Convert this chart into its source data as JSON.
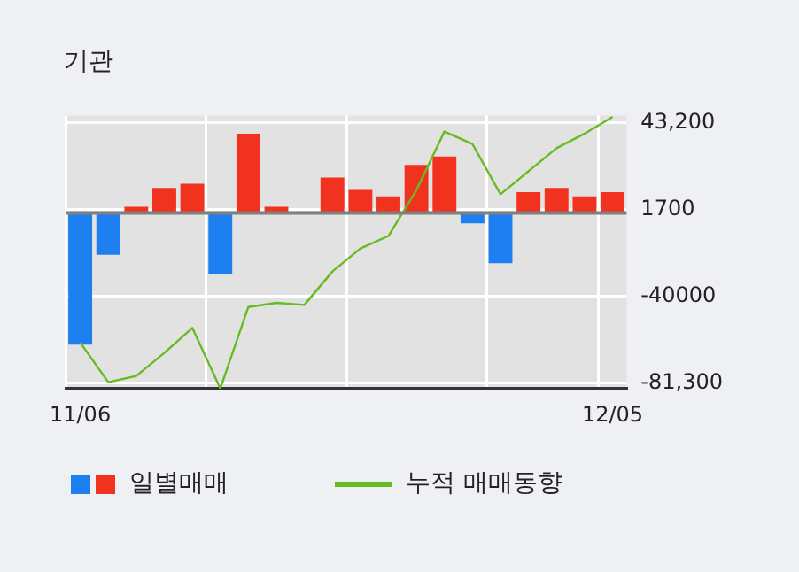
{
  "chart_data": {
    "type": "bar",
    "title": "기관",
    "categories": [
      "11/06",
      null,
      null,
      null,
      null,
      null,
      null,
      null,
      null,
      null,
      null,
      null,
      null,
      null,
      null,
      null,
      null,
      null,
      null,
      "12/05"
    ],
    "series": [
      {
        "name": "일별매매",
        "colors": [
          "#1e7ff0",
          "#1e7ff0",
          "#f0321e",
          "#f0321e",
          "#f0321e",
          "#1e7ff0",
          "#f0321e",
          "#f0321e",
          "#f0321e",
          "#f0321e",
          "#f0321e",
          "#f0321e",
          "#f0321e",
          "#f0321e",
          "#1e7ff0",
          "#1e7ff0",
          "#f0321e",
          "#f0321e",
          "#f0321e",
          "#f0321e"
        ],
        "values": [
          -63000,
          -20000,
          3000,
          12000,
          14000,
          -29000,
          38000,
          3000,
          0,
          17000,
          11000,
          8000,
          23000,
          27000,
          -5000,
          -24000,
          10000,
          12000,
          8000,
          10000
        ]
      },
      {
        "name": "누적 매매동향",
        "type": "line",
        "color": "#66bb22",
        "values": [
          -62000,
          -81000,
          -78000,
          -67000,
          -55000,
          -84000,
          -45000,
          -43000,
          -44000,
          -28000,
          -17000,
          -11000,
          11000,
          39000,
          33000,
          9000,
          20000,
          31000,
          38000,
          46000
        ]
      }
    ],
    "ylim": [
      -84200,
      46700
    ],
    "yticks": [
      {
        "value": 43200,
        "label": "43,200"
      },
      1700,
      -40000,
      {
        "value": -81300,
        "label": "-81,300"
      }
    ],
    "grid": true,
    "legend": "bottom",
    "marker": "none"
  }
}
